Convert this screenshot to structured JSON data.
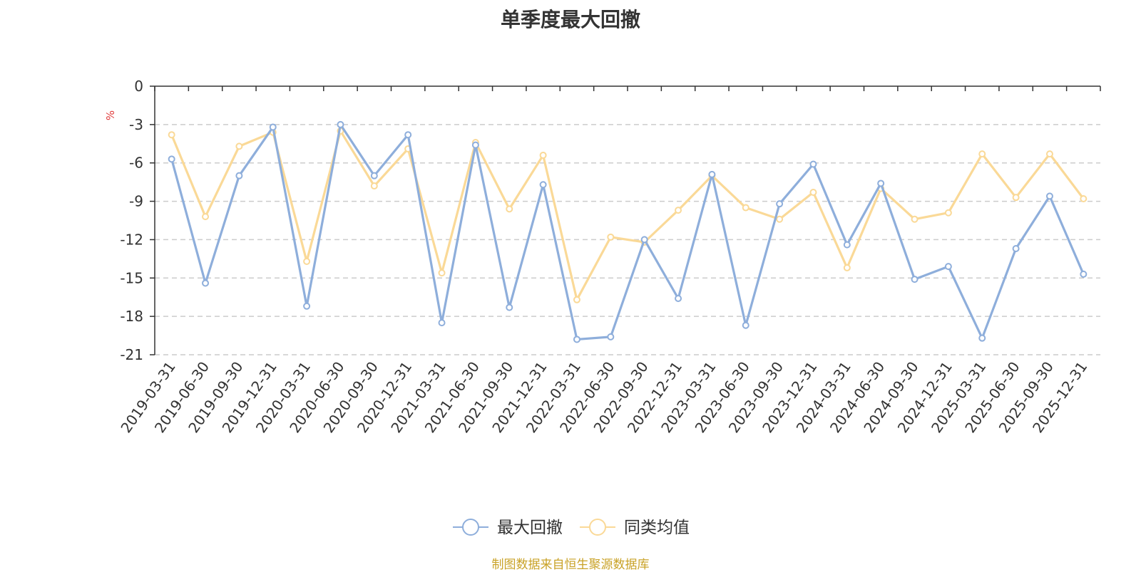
{
  "chart_data": {
    "type": "line",
    "title": "单季度最大回撤",
    "ylabel": "%",
    "ylim": [
      -21,
      0
    ],
    "yticks": [
      0,
      -3,
      -6,
      -9,
      -12,
      -15,
      -18,
      -21
    ],
    "grid": true,
    "legend_position": "bottom-center",
    "categories": [
      "2019-03-31",
      "2019-06-30",
      "2019-09-30",
      "2019-12-31",
      "2020-03-31",
      "2020-06-30",
      "2020-09-30",
      "2020-12-31",
      "2021-03-31",
      "2021-06-30",
      "2021-09-30",
      "2021-12-31",
      "2022-03-31",
      "2022-06-30",
      "2022-09-30",
      "2022-12-31",
      "2023-03-31",
      "2023-06-30",
      "2023-09-30",
      "2023-12-31",
      "2024-03-31",
      "2024-06-30",
      "2024-09-30",
      "2024-12-31",
      "2025-03-31",
      "2025-06-30",
      "2025-09-30",
      "2025-12-31"
    ],
    "series": [
      {
        "name": "最大回撤",
        "color": "#8eaedb",
        "values": [
          -5.7,
          -15.4,
          -7.0,
          -3.2,
          -17.2,
          -3.0,
          -7.0,
          -3.8,
          -18.5,
          -4.6,
          -17.3,
          -7.7,
          -19.8,
          -19.6,
          -12.0,
          -16.6,
          -6.9,
          -18.7,
          -9.2,
          -6.1,
          -12.4,
          -7.6,
          -15.1,
          -14.1,
          -19.7,
          -12.7,
          -8.6,
          -14.7
        ]
      },
      {
        "name": "同类均值",
        "color": "#fad997",
        "values": [
          -3.8,
          -10.2,
          -4.7,
          -3.6,
          -13.7,
          -3.5,
          -7.8,
          -4.9,
          -14.6,
          -4.4,
          -9.6,
          -5.4,
          -16.7,
          -11.8,
          -12.2,
          -9.7,
          -7.0,
          -9.5,
          -10.4,
          -8.3,
          -14.2,
          -8.0,
          -10.4,
          -9.9,
          -5.3,
          -8.7,
          -5.3,
          -8.8
        ]
      }
    ]
  },
  "footer": {
    "source": "制图数据来自恒生聚源数据库"
  }
}
